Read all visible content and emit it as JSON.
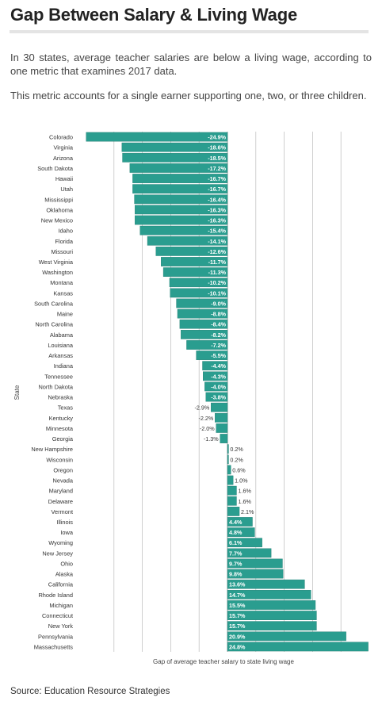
{
  "title": "Gap Between Salary & Living Wage",
  "description": [
    "In 30 states, average teacher salaries are below a living wage, according to one metric that examines 2017 data.",
    "This metric accounts for a single earner supporting one, two, or three children."
  ],
  "source": "Source: Education Resource Strategies",
  "colors": {
    "bar": "#2a9d8f",
    "bar_border": "#1f7c70",
    "grid": "#bbbbbb",
    "text": "#333333"
  },
  "chart_data": {
    "type": "bar",
    "orientation": "horizontal",
    "ylabel": "State",
    "xlabel": "Gap of average teacher salary to state living wage",
    "xlim": [
      -25,
      25
    ],
    "grid": true,
    "categories": [
      "Colorado",
      "Virginia",
      "Arizona",
      "South Dakota",
      "Hawaii",
      "Utah",
      "Mississippi",
      "Oklahoma",
      "New Mexico",
      "Idaho",
      "Florida",
      "Missouri",
      "West Virginia",
      "Washington",
      "Montana",
      "Kansas",
      "South Carolina",
      "Maine",
      "North Carolina",
      "Alabama",
      "Louisiana",
      "Arkansas",
      "Indiana",
      "Tennessee",
      "North Dakota",
      "Nebraska",
      "Texas",
      "Kentucky",
      "Minnesota",
      "Georgia",
      "New Hampshire",
      "Wisconsin",
      "Oregon",
      "Nevada",
      "Maryland",
      "Delaware",
      "Vermont",
      "Illinois",
      "Iowa",
      "Wyoming",
      "New Jersey",
      "Ohio",
      "Alaska",
      "California",
      "Rhode Island",
      "Michigan",
      "Connecticut",
      "New York",
      "Pennsylvania",
      "Massachusetts"
    ],
    "values": [
      -24.9,
      -18.6,
      -18.5,
      -17.2,
      -16.7,
      -16.7,
      -16.4,
      -16.3,
      -16.3,
      -15.4,
      -14.1,
      -12.6,
      -11.7,
      -11.3,
      -10.2,
      -10.1,
      -9.0,
      -8.8,
      -8.4,
      -8.2,
      -7.2,
      -5.5,
      -4.4,
      -4.3,
      -4.0,
      -3.8,
      -2.9,
      -2.2,
      -2.0,
      -1.3,
      0.2,
      0.2,
      0.6,
      1.0,
      1.6,
      1.6,
      2.1,
      4.4,
      4.8,
      6.1,
      7.7,
      9.7,
      9.8,
      13.6,
      14.7,
      15.5,
      15.7,
      15.7,
      20.9,
      24.8
    ],
    "labels": [
      "-24.9%",
      "-18.6%",
      "-18.5%",
      "-17.2%",
      "-16.7%",
      "-16.7%",
      "-16.4%",
      "-16.3%",
      "-16.3%",
      "-15.4%",
      "-14.1%",
      "-12.6%",
      "-11.7%",
      "-11.3%",
      "-10.2%",
      "-10.1%",
      "-9.0%",
      "-8.8%",
      "-8.4%",
      "-8.2%",
      "-7.2%",
      "-5.5%",
      "-4.4%",
      "-4.3%",
      "-4.0%",
      "-3.8%",
      "-2.9%",
      "-2.2%",
      "-2.0%",
      "-1.3%",
      "0.2%",
      "0.2%",
      "0.6%",
      "1.0%",
      "1.6%",
      "1.6%",
      "2.1%",
      "4.4%",
      "4.8%",
      "6.1%",
      "7.7%",
      "9.7%",
      "9.8%",
      "13.6%",
      "14.7%",
      "15.5%",
      "15.7%",
      "15.7%",
      "20.9%",
      "24.8%"
    ]
  }
}
